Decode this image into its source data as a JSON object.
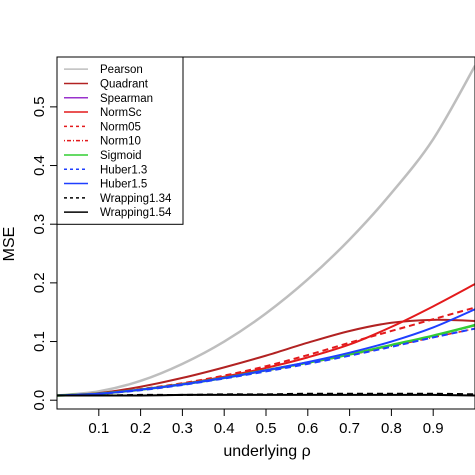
{
  "chart_data": {
    "type": "line",
    "xlabel": "underlying ρ",
    "ylabel": "MSE",
    "xlim": [
      0,
      1
    ],
    "ylim": [
      0,
      0.57
    ],
    "xticks": [
      0.1,
      0.2,
      0.3,
      0.4,
      0.5,
      0.6,
      0.7,
      0.8,
      0.9
    ],
    "xtick_labels": [
      "0.1",
      "0.2",
      "0.3",
      "0.4",
      "0.5",
      "0.6",
      "0.7",
      "0.8",
      "0.9"
    ],
    "yticks": [
      0.0,
      0.1,
      0.2,
      0.3,
      0.4,
      0.5
    ],
    "ytick_labels": [
      "0.0",
      "0.1",
      "0.2",
      "0.3",
      "0.4",
      "0.5"
    ],
    "grid": false,
    "legend_position": "top-left",
    "x": [
      0.0,
      0.1,
      0.2,
      0.3,
      0.4,
      0.5,
      0.6,
      0.7,
      0.8,
      0.9,
      1.0
    ],
    "series": [
      {
        "name": "Pearson",
        "color": "#bebebe",
        "dash": "solid",
        "width": 2.5,
        "values": [
          0.008,
          0.015,
          0.033,
          0.062,
          0.1,
          0.148,
          0.206,
          0.274,
          0.353,
          0.445,
          0.57
        ]
      },
      {
        "name": "Quadrant",
        "color": "#b22222",
        "dash": "solid",
        "width": 2.0,
        "values": [
          0.008,
          0.012,
          0.023,
          0.038,
          0.056,
          0.076,
          0.098,
          0.118,
          0.132,
          0.137,
          0.135
        ]
      },
      {
        "name": "Spearman",
        "color": "#9932cc",
        "dash": "solid",
        "width": 1.5,
        "values": [
          0.008,
          0.011,
          0.018,
          0.027,
          0.038,
          0.051,
          0.064,
          0.078,
          0.094,
          0.11,
          0.127
        ]
      },
      {
        "name": "NormSc",
        "color": "#e31a1c",
        "dash": "solid",
        "width": 2.0,
        "values": [
          0.008,
          0.011,
          0.018,
          0.028,
          0.04,
          0.055,
          0.073,
          0.095,
          0.125,
          0.16,
          0.198
        ]
      },
      {
        "name": "Norm05",
        "color": "#e31a1c",
        "dash": "dashed",
        "width": 2.0,
        "values": [
          0.008,
          0.011,
          0.019,
          0.029,
          0.042,
          0.058,
          0.077,
          0.098,
          0.118,
          0.138,
          0.158
        ]
      },
      {
        "name": "Norm10",
        "color": "#e31a1c",
        "dash": "dotdash",
        "width": 1.5,
        "values": [
          0.008,
          0.011,
          0.018,
          0.027,
          0.038,
          0.05,
          0.063,
          0.077,
          0.092,
          0.107,
          0.122
        ]
      },
      {
        "name": "Sigmoid",
        "color": "#32cd32",
        "dash": "solid",
        "width": 2.5,
        "values": [
          0.008,
          0.011,
          0.018,
          0.027,
          0.038,
          0.051,
          0.064,
          0.078,
          0.094,
          0.11,
          0.128
        ]
      },
      {
        "name": "Huber1.3",
        "color": "#1f3fff",
        "dash": "dashed",
        "width": 2.0,
        "values": [
          0.008,
          0.011,
          0.017,
          0.026,
          0.037,
          0.049,
          0.062,
          0.076,
          0.091,
          0.107,
          0.122
        ]
      },
      {
        "name": "Huber1.5",
        "color": "#1f3fff",
        "dash": "solid",
        "width": 2.0,
        "values": [
          0.008,
          0.011,
          0.018,
          0.027,
          0.038,
          0.051,
          0.065,
          0.081,
          0.1,
          0.124,
          0.155
        ]
      },
      {
        "name": "Wrapping1.34",
        "color": "#000000",
        "dash": "dashed",
        "width": 2.0,
        "values": [
          0.008,
          0.008,
          0.009,
          0.009,
          0.01,
          0.01,
          0.011,
          0.011,
          0.011,
          0.011,
          0.01
        ]
      },
      {
        "name": "Wrapping1.54",
        "color": "#000000",
        "dash": "solid",
        "width": 2.0,
        "values": [
          0.008,
          0.008,
          0.008,
          0.009,
          0.009,
          0.009,
          0.009,
          0.009,
          0.009,
          0.009,
          0.008
        ]
      }
    ]
  }
}
